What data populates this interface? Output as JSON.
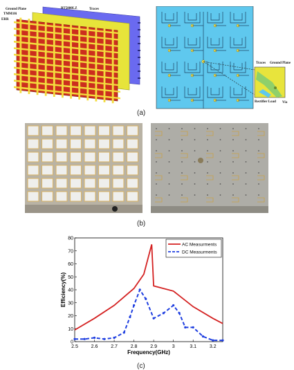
{
  "figure_a": {
    "caption": "(a)",
    "layer_labels": [
      "Ground Plane",
      "TMM10i",
      "ERR",
      "RT5880LZ",
      "Traces"
    ],
    "inset_labels": [
      "Traces",
      "Ground Plane",
      "Rectifier Load",
      "Via"
    ],
    "colors": {
      "erl": "#cc2e1e",
      "substrate": "#e7e43a",
      "traces_layer": "#6a6af0",
      "grid": "#f3dc3d",
      "board_bg": "#5fc8ee"
    }
  },
  "figure_b": {
    "caption": "(b)"
  },
  "figure_c": {
    "caption": "(c)"
  },
  "chart_data": {
    "type": "line",
    "xlabel": "Frequency(GHz)",
    "ylabel": "Efficiency(%)",
    "xlim": [
      2.5,
      3.25
    ],
    "ylim": [
      0,
      80
    ],
    "xticks": [
      "2.5",
      "2.6",
      "2.7",
      "2.8",
      "2.9",
      "3",
      "3.1",
      "3.2"
    ],
    "yticks": [
      "0",
      "10",
      "20",
      "30",
      "40",
      "50",
      "60",
      "70",
      "80"
    ],
    "legend_position": "top-right",
    "grid": false,
    "series": [
      {
        "name": "AC Measurments",
        "color": "#d42020",
        "style": "solid",
        "x": [
          2.5,
          2.6,
          2.7,
          2.8,
          2.85,
          2.89,
          2.9,
          3.0,
          3.1,
          3.2,
          3.25
        ],
        "y": [
          9,
          18,
          28,
          41,
          52,
          75,
          43,
          39,
          27,
          18,
          14
        ]
      },
      {
        "name": "DC Measurments",
        "color": "#1f3fe0",
        "style": "dashed",
        "x": [
          2.5,
          2.55,
          2.6,
          2.65,
          2.7,
          2.75,
          2.78,
          2.8,
          2.83,
          2.86,
          2.9,
          2.95,
          3.0,
          3.03,
          3.06,
          3.1,
          3.15,
          3.2,
          3.25
        ],
        "y": [
          2,
          2,
          3,
          2,
          3,
          7,
          19,
          28,
          40,
          33,
          18,
          22,
          28,
          22,
          11,
          11,
          4,
          1,
          1
        ]
      }
    ]
  }
}
